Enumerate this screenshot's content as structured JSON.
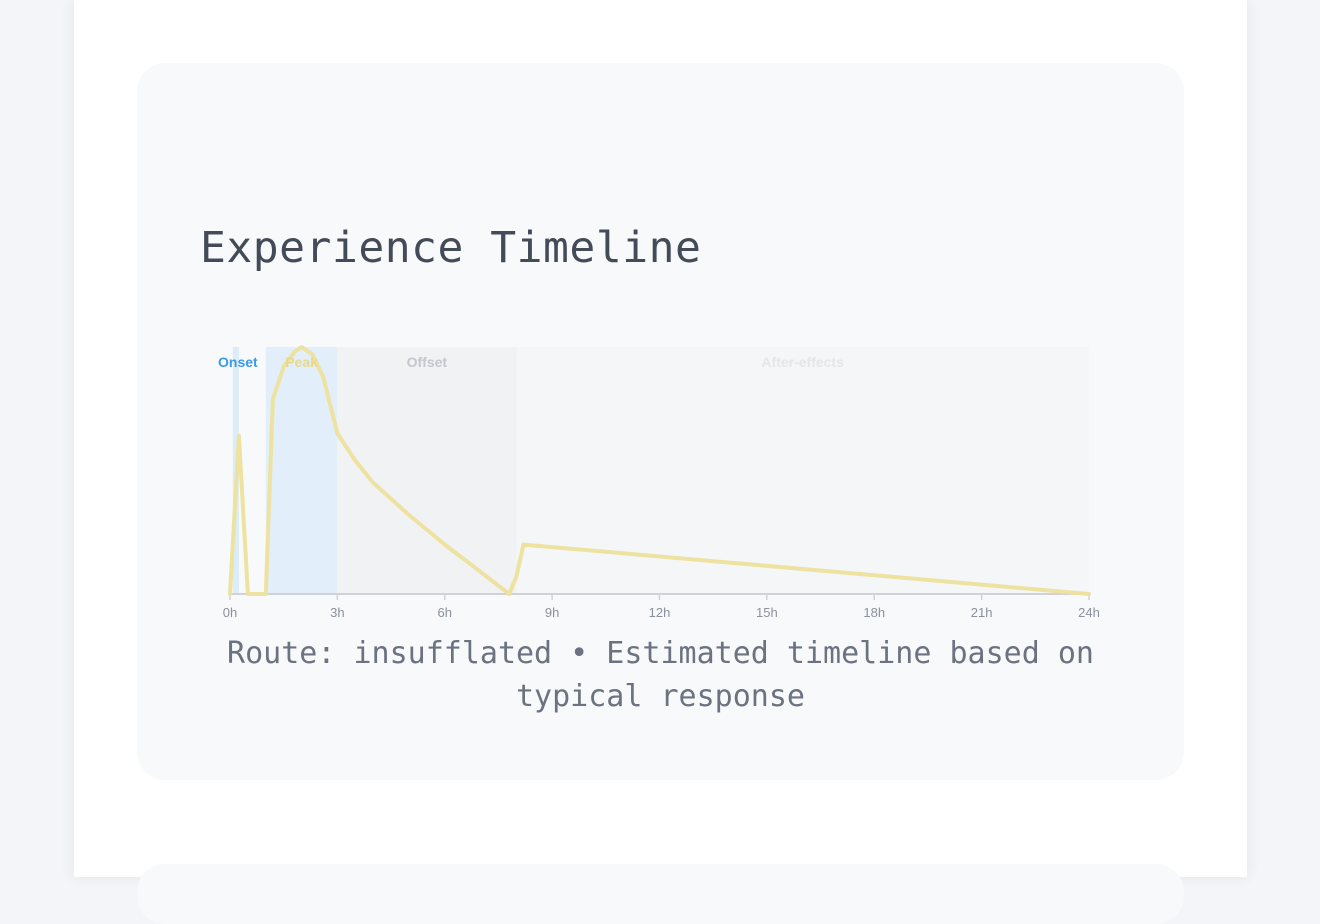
{
  "section": {
    "title": "Experience Timeline",
    "caption": "Route: insufflated • Estimated timeline based on typical response"
  },
  "chart_data": {
    "type": "line",
    "title": "",
    "xlabel": "",
    "ylabel": "",
    "xlim": [
      0,
      24
    ],
    "ylim": [
      0,
      1
    ],
    "x_ticks": [
      0,
      3,
      6,
      9,
      12,
      15,
      18,
      21,
      24
    ],
    "x_tick_labels": [
      "0h",
      "3h",
      "6h",
      "9h",
      "12h",
      "15h",
      "18h",
      "21h",
      "24h"
    ],
    "grid": false,
    "legend": "none",
    "phases": [
      {
        "name": "Onset",
        "start": 0.08,
        "end": 0.25,
        "color": "#3b9ae1",
        "fill": "#d5e8f8",
        "fill_opacity": 0.8
      },
      {
        "name": "Peak",
        "start": 1.0,
        "end": 3.0,
        "color": "#e8d98a",
        "fill": "#d9e9f8",
        "fill_opacity": 0.7
      },
      {
        "name": "Offset",
        "start": 3.0,
        "end": 8.0,
        "color": "#c3c7cd",
        "fill": "#eaecef",
        "fill_opacity": 0.55
      },
      {
        "name": "After-effects",
        "start": 8.0,
        "end": 24.0,
        "color": "#e4e6e9",
        "fill": "#f0f1f3",
        "fill_opacity": 0.45
      }
    ],
    "series": [
      {
        "color": "#ede2a0",
        "x": [
          0,
          0.25,
          0.5,
          1.0,
          1.2,
          1.5,
          1.8,
          2.0,
          2.3,
          2.6,
          3.0,
          3.5,
          4.0,
          5.0,
          6.0,
          7.0,
          7.8,
          8.0,
          8.2,
          24
        ],
        "y": [
          0,
          0.64,
          0,
          0,
          0.79,
          0.92,
          0.98,
          1.0,
          0.97,
          0.88,
          0.65,
          0.54,
          0.45,
          0.32,
          0.2,
          0.09,
          0.0,
          0.07,
          0.2,
          0
        ]
      }
    ]
  }
}
